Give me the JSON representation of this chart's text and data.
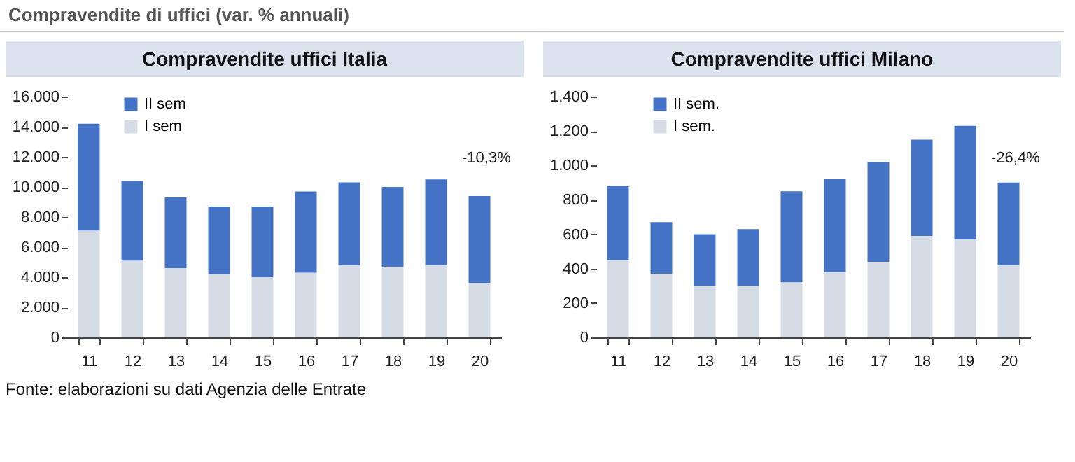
{
  "chart_data": [
    {
      "type": "bar",
      "title": "Compravendite uffici Italia",
      "stacked": true,
      "legend": "top left",
      "categories": [
        "11",
        "12",
        "13",
        "14",
        "15",
        "16",
        "17",
        "18",
        "19",
        "20"
      ],
      "series": [
        {
          "name": "I sem",
          "color": "#d6dce5",
          "values": [
            7100,
            5100,
            4600,
            4200,
            4000,
            4300,
            4800,
            4700,
            4800,
            3600
          ]
        },
        {
          "name": "II sem",
          "color": "#4472c4",
          "values": [
            7100,
            5300,
            4700,
            4500,
            4700,
            5400,
            5500,
            5300,
            5700,
            5800
          ]
        }
      ],
      "ylim": [
        0,
        16000
      ],
      "yticks": [
        0,
        {
          "value": 2000,
          "label": "2.000"
        },
        {
          "value": 4000,
          "label": "4.000"
        },
        {
          "value": 6000,
          "label": "6.000"
        },
        {
          "value": 8000,
          "label": "8.000"
        },
        {
          "value": 10000,
          "label": "10.000"
        },
        {
          "value": 12000,
          "label": "12.000"
        },
        {
          "value": 14000,
          "label": "14.000"
        },
        {
          "value": 16000,
          "label": "16.000"
        }
      ],
      "annotations": [
        "Compravendite di uffici (var. % annuali)",
        "-10,3%"
      ]
    },
    {
      "type": "bar",
      "title": "Compravendite uffici Milano",
      "stacked": true,
      "legend": "top left",
      "categories": [
        "11",
        "12",
        "13",
        "14",
        "15",
        "16",
        "17",
        "18",
        "19",
        "20"
      ],
      "series": [
        {
          "name": "I sem.",
          "color": "#d6dce5",
          "values": [
            450,
            370,
            300,
            300,
            320,
            380,
            440,
            590,
            570,
            420
          ]
        },
        {
          "name": "II sem.",
          "color": "#4472c4",
          "values": [
            430,
            300,
            300,
            330,
            530,
            540,
            580,
            560,
            660,
            480
          ]
        }
      ],
      "ylim": [
        0,
        1400
      ],
      "yticks": [
        0,
        200,
        400,
        600,
        800,
        {
          "value": 1000,
          "label": "1.000"
        },
        {
          "value": 1200,
          "label": "1.200"
        },
        {
          "value": 1400,
          "label": "1.400"
        }
      ],
      "annotations": [
        "-26,4%",
        "Fonte: elaborazioni su dati Agenzia delle Entrate"
      ]
    }
  ]
}
